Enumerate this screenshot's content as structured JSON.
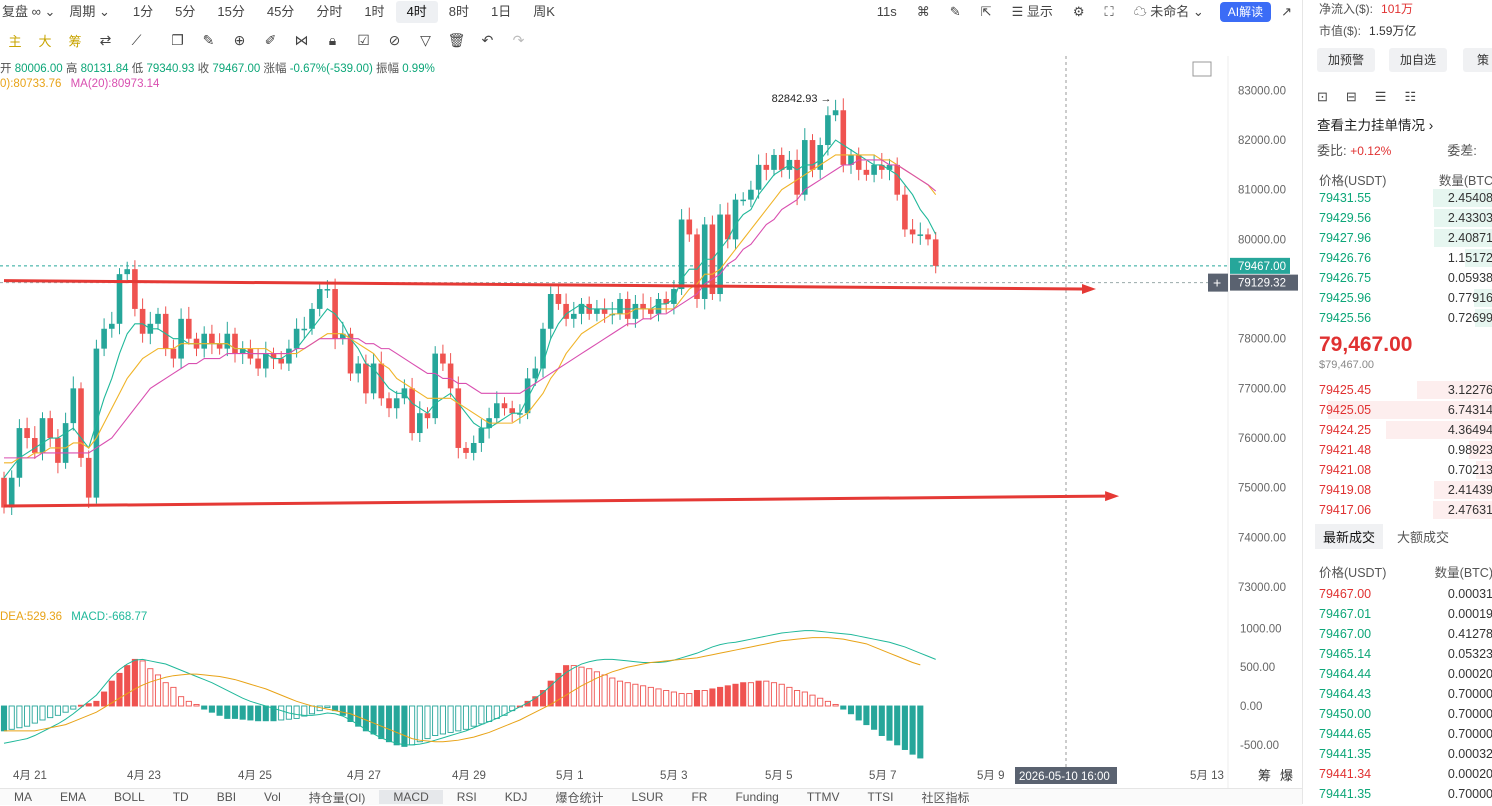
{
  "toolbar": {
    "items": [
      "复盘",
      "周期",
      "1分",
      "5分",
      "15分",
      "45分",
      "分时",
      "1时",
      "4时",
      "8时",
      "1日",
      "周K"
    ],
    "active": "4时",
    "right": [
      "11s",
      "显示",
      "未命名",
      "AI解读"
    ]
  },
  "drawbar": {
    "labels": [
      "主",
      "大",
      "筹"
    ]
  },
  "info": {
    "open_label": "开",
    "open": "80006.00",
    "high_label": "高",
    "high": "80131.84",
    "low_label": "低",
    "low": "79340.93",
    "close_label": "收",
    "close": "79467.00",
    "chg_label": "涨幅",
    "chg": "-0.67%(-539.00)",
    "amp_label": "振幅",
    "amp": "0.99%"
  },
  "ma": {
    "ma10": "0):80733.76",
    "ma20": "MA(20):80973.14"
  },
  "macd_label": {
    "dea": "DEA:529.36",
    "macd": "MACD:-668.77"
  },
  "bottom_tabs": [
    "MA",
    "EMA",
    "BOLL",
    "TD",
    "BBI",
    "Vol",
    "持仓量(OI)",
    "MACD",
    "RSI",
    "KDJ",
    "爆仓统计",
    "LSUR",
    "FR",
    "Funding",
    "TTMV",
    "TTSI",
    "社区指标"
  ],
  "bottom_active": "MACD",
  "colors": {
    "up": "#26a69a",
    "down": "#ef5350",
    "ma_a": "#1fb89a",
    "ma_b": "#f0b429",
    "ma_c": "#d94fb0",
    "arrow": "#e53935"
  },
  "sidebar": {
    "inflow_label": "净流入($):",
    "inflow": "101万",
    "mcap_label": "市值($):",
    "mcap": "1.59万亿",
    "buttons": [
      "加预警",
      "加自选",
      "策"
    ],
    "orderbook_link": "查看主力挂单情况",
    "ratio_label": "委比:",
    "ratio": "+0.12%",
    "diff_label": "委差:",
    "book_head": [
      "价格(USDT)",
      "数量(BTC"
    ],
    "asks": [
      {
        "p": "79431.55",
        "q": "2.45408"
      },
      {
        "p": "79429.56",
        "q": "2.43303"
      },
      {
        "p": "79427.96",
        "q": "2.40871"
      },
      {
        "p": "79426.76",
        "q": "1.15172"
      },
      {
        "p": "79426.75",
        "q": "0.05938"
      },
      {
        "p": "79425.96",
        "q": "0.77916"
      },
      {
        "p": "79425.56",
        "q": "0.72699"
      }
    ],
    "last": "79,467.00",
    "last_usd": "$79,467.00",
    "bids": [
      {
        "p": "79425.45",
        "q": "3.12276"
      },
      {
        "p": "79425.05",
        "q": "6.74314"
      },
      {
        "p": "79424.25",
        "q": "4.36494"
      },
      {
        "p": "79421.48",
        "q": "0.98923"
      },
      {
        "p": "79421.08",
        "q": "0.70213"
      },
      {
        "p": "79419.08",
        "q": "2.41439"
      },
      {
        "p": "79417.06",
        "q": "2.47631"
      }
    ],
    "trade_tabs": [
      "最新成交",
      "大额成交"
    ],
    "trade_head": [
      "价格(USDT)",
      "数量(BTC)"
    ],
    "trades": [
      {
        "p": "79467.00",
        "q": "0.00031",
        "c": "down"
      },
      {
        "p": "79467.01",
        "q": "0.00019",
        "c": "up"
      },
      {
        "p": "79467.00",
        "q": "0.41278",
        "c": "up"
      },
      {
        "p": "79465.14",
        "q": "0.05323",
        "c": "up"
      },
      {
        "p": "79464.44",
        "q": "0.00020",
        "c": "up"
      },
      {
        "p": "79464.43",
        "q": "0.70000",
        "c": "up"
      },
      {
        "p": "79450.00",
        "q": "0.70000",
        "c": "up"
      },
      {
        "p": "79444.65",
        "q": "0.70000",
        "c": "up"
      },
      {
        "p": "79441.35",
        "q": "0.00032",
        "c": "up"
      },
      {
        "p": "79441.34",
        "q": "0.00020",
        "c": "down"
      },
      {
        "p": "79441.35",
        "q": "0.70000",
        "c": "up"
      }
    ]
  },
  "chart_data": {
    "type": "candlestick",
    "interval": "4H",
    "ylim": [
      73000,
      83000
    ],
    "y_ticks": [
      "83000.00",
      "82000.00",
      "81000.00",
      "80000.00",
      "78000.00",
      "77000.00",
      "76000.00",
      "75000.00",
      "74000.00",
      "73000.00"
    ],
    "price_labels": {
      "last": "79467.00",
      "cursor": "79129.32",
      "high_marker": "82842.93"
    },
    "x_ticks": [
      "4月 21",
      "4月 23",
      "4月 25",
      "4月 27",
      "4月 29",
      "5月 1",
      "5月 3",
      "5月 5",
      "5月 7",
      "5月 9",
      "5月 13"
    ],
    "cursor_date": "2026-05-10 16:00",
    "scale_labels": [
      "筹",
      "爆"
    ],
    "macd_ticks": [
      "1000.00",
      "500.00",
      "0.00",
      "-500.00"
    ],
    "annotations": [
      {
        "type": "arrow",
        "from": {
          "date_index": 0,
          "price": 79170
        },
        "to": {
          "date_index": 140,
          "price": 79000
        }
      },
      {
        "type": "arrow",
        "from": {
          "date_index": 0,
          "price": 74630
        },
        "to": {
          "date_index": 143,
          "price": 74830
        }
      }
    ],
    "closes": [
      74600,
      75200,
      76200,
      76000,
      75700,
      76400,
      76000,
      75500,
      76300,
      77000,
      75600,
      74800,
      77800,
      78200,
      78300,
      79300,
      79400,
      78600,
      78100,
      78300,
      78500,
      77800,
      77600,
      78400,
      78000,
      77800,
      78100,
      77900,
      77800,
      78100,
      77700,
      77800,
      77600,
      77400,
      77700,
      77600,
      77500,
      77800,
      78200,
      78200,
      78600,
      79000,
      79000,
      78000,
      78100,
      77300,
      77500,
      76900,
      77500,
      76800,
      76600,
      76800,
      77000,
      76100,
      76500,
      76400,
      77700,
      77500,
      77000,
      75800,
      75700,
      75900,
      76200,
      76400,
      76700,
      76600,
      76500,
      76500,
      77200,
      77400,
      78200,
      78900,
      78700,
      78400,
      78500,
      78700,
      78500,
      78600,
      78500,
      78500,
      78800,
      78400,
      78700,
      78600,
      78500,
      78800,
      78700,
      79000,
      80400,
      80100,
      78800,
      80300,
      78900,
      80500,
      80000,
      80800,
      80800,
      81000,
      81500,
      81400,
      81700,
      81400,
      81600,
      80900,
      82000,
      81400,
      81900,
      82500,
      82600,
      81500,
      81700,
      81400,
      81300,
      81500,
      81400,
      81500,
      80900,
      80200,
      80100,
      80100,
      80000,
      79467
    ],
    "ma_a": [
      75200,
      75400,
      75600,
      75700,
      75800,
      75900,
      76000,
      76000,
      76100,
      76200,
      76000,
      75800,
      76300,
      76800,
      77200,
      77700,
      78100,
      78300,
      78300,
      78200,
      78200,
      78100,
      78000,
      78000,
      77900,
      77900,
      77900,
      77900,
      77900,
      77900,
      77800,
      77800,
      77700,
      77700,
      77700,
      77600,
      77600,
      77700,
      77800,
      78000,
      78200,
      78400,
      78600,
      78500,
      78300,
      78000,
      77800,
      77500,
      77400,
      77200,
      77000,
      76900,
      76900,
      76700,
      76600,
      76500,
      76700,
      76800,
      76900,
      76700,
      76500,
      76300,
      76200,
      76200,
      76300,
      76400,
      76500,
      76500,
      76800,
      77100,
      77500,
      78000,
      78300,
      78500,
      78600,
      78700,
      78600,
      78600,
      78600,
      78600,
      78600,
      78600,
      78600,
      78600,
      78600,
      78700,
      78700,
      78800,
      79200,
      79400,
      79400,
      79600,
      79600,
      79800,
      80000,
      80300,
      80500,
      80600,
      80900,
      81100,
      81300,
      81400,
      81500,
      81400,
      81500,
      81500,
      81600,
      81800,
      82000,
      81900,
      81800,
      81700,
      81600,
      81500,
      81500,
      81400,
      81300,
      81100,
      80900,
      80600,
      80400,
      80100
    ],
    "ma_b": [
      75500,
      75500,
      75600,
      75600,
      75700,
      75700,
      75800,
      75800,
      75800,
      75900,
      75900,
      75800,
      76000,
      76300,
      76600,
      76900,
      77200,
      77400,
      77600,
      77700,
      77800,
      77800,
      77800,
      77900,
      77900,
      77900,
      77900,
      77900,
      77900,
      77900,
      77800,
      77800,
      77800,
      77800,
      77800,
      77700,
      77700,
      77700,
      77700,
      77800,
      77900,
      78000,
      78100,
      78100,
      78100,
      78000,
      77900,
      77800,
      77700,
      77500,
      77400,
      77200,
      77100,
      77000,
      76900,
      76800,
      76800,
      76800,
      76800,
      76700,
      76600,
      76500,
      76400,
      76300,
      76300,
      76300,
      76300,
      76400,
      76500,
      76700,
      76900,
      77200,
      77400,
      77700,
      77900,
      78100,
      78200,
      78300,
      78400,
      78500,
      78500,
      78500,
      78600,
      78600,
      78600,
      78600,
      78600,
      78600,
      78800,
      79000,
      79100,
      79300,
      79300,
      79400,
      79600,
      79800,
      80000,
      80200,
      80400,
      80600,
      80800,
      81000,
      81100,
      81200,
      81300,
      81400,
      81500,
      81600,
      81700,
      81700,
      81700,
      81700,
      81700,
      81700,
      81600,
      81600,
      81500,
      81400,
      81300,
      81200,
      81100,
      80900
    ],
    "ma_c": [
      75600,
      75600,
      75600,
      75600,
      75600,
      75700,
      75700,
      75700,
      75700,
      75700,
      75700,
      75700,
      75800,
      75900,
      76000,
      76200,
      76400,
      76600,
      76800,
      77000,
      77100,
      77200,
      77300,
      77400,
      77500,
      77500,
      77600,
      77600,
      77600,
      77700,
      77700,
      77700,
      77700,
      77700,
      77700,
      77700,
      77700,
      77700,
      77800,
      77800,
      77900,
      78000,
      78000,
      78000,
      78000,
      78000,
      78000,
      77900,
      77900,
      77800,
      77800,
      77700,
      77600,
      77500,
      77400,
      77300,
      77300,
      77200,
      77200,
      77100,
      77100,
      77000,
      76900,
      76900,
      76900,
      76900,
      76900,
      76900,
      77000,
      77100,
      77200,
      77300,
      77400,
      77500,
      77600,
      77700,
      77800,
      77900,
      78000,
      78100,
      78200,
      78300,
      78300,
      78400,
      78400,
      78500,
      78500,
      78600,
      78700,
      78800,
      78900,
      79100,
      79200,
      79300,
      79500,
      79600,
      79800,
      79900,
      80100,
      80300,
      80400,
      80600,
      80700,
      80800,
      81000,
      81100,
      81200,
      81300,
      81400,
      81500,
      81500,
      81600,
      81600,
      81600,
      81600,
      81500,
      81500,
      81400,
      81300,
      81200,
      81100,
      80973
    ],
    "macd_hist": [
      -320,
      -300,
      -280,
      -260,
      -220,
      -180,
      -150,
      -120,
      -80,
      -40,
      10,
      30,
      60,
      180,
      320,
      420,
      520,
      600,
      580,
      480,
      400,
      300,
      240,
      120,
      60,
      20,
      -40,
      -80,
      -120,
      -160,
      -160,
      -170,
      -180,
      -190,
      -190,
      -190,
      -180,
      -170,
      -160,
      -130,
      -100,
      -60,
      -20,
      -60,
      -120,
      -200,
      -260,
      -320,
      -360,
      -420,
      -460,
      -500,
      -520,
      -500,
      -460,
      -420,
      -380,
      -360,
      -340,
      -320,
      -300,
      -260,
      -230,
      -200,
      -160,
      -120,
      -60,
      0,
      60,
      120,
      200,
      320,
      420,
      520,
      520,
      500,
      480,
      440,
      400,
      360,
      320,
      300,
      280,
      260,
      240,
      220,
      200,
      180,
      160,
      160,
      200,
      200,
      220,
      240,
      260,
      280,
      300,
      300,
      320,
      320,
      300,
      280,
      240,
      200,
      180,
      140,
      100,
      60,
      20,
      -40,
      -100,
      -180,
      -240,
      -300,
      -380,
      -440,
      -500,
      -560,
      -620,
      -669
    ],
    "macd_dif": [
      -480,
      -460,
      -440,
      -420,
      -380,
      -330,
      -280,
      -230,
      -170,
      -100,
      -20,
      60,
      140,
      260,
      380,
      470,
      540,
      590,
      600,
      580,
      560,
      540,
      500,
      460,
      420,
      380,
      340,
      300,
      250,
      200,
      150,
      100,
      60,
      30,
      0,
      -30,
      -60,
      -90,
      -110,
      -120,
      -120,
      -110,
      -90,
      -100,
      -130,
      -180,
      -240,
      -300,
      -360,
      -410,
      -450,
      -480,
      -500,
      -500,
      -490,
      -470,
      -440,
      -410,
      -380,
      -350,
      -320,
      -280,
      -240,
      -200,
      -160,
      -110,
      -60,
      -10,
      40,
      100,
      170,
      260,
      350,
      430,
      490,
      540,
      570,
      590,
      600,
      600,
      590,
      580,
      570,
      560,
      560,
      560,
      570,
      590,
      620,
      650,
      680,
      720,
      760,
      790,
      810,
      820,
      840,
      860,
      880,
      900,
      920,
      940,
      950,
      960,
      970,
      970,
      960,
      950,
      940,
      930,
      920,
      900,
      880,
      860,
      840,
      820,
      790,
      760,
      720,
      680,
      640,
      600
    ],
    "macd_dea": [
      -320,
      -320,
      -320,
      -320,
      -320,
      -300,
      -280,
      -260,
      -240,
      -200,
      -160,
      -120,
      -80,
      -20,
      40,
      100,
      160,
      220,
      270,
      310,
      340,
      370,
      390,
      400,
      410,
      410,
      400,
      390,
      380,
      360,
      340,
      310,
      280,
      250,
      220,
      180,
      140,
      100,
      60,
      30,
      0,
      -20,
      -40,
      -60,
      -80,
      -100,
      -140,
      -180,
      -220,
      -260,
      -300,
      -340,
      -380,
      -420,
      -440,
      -450,
      -460,
      -460,
      -450,
      -440,
      -420,
      -400,
      -370,
      -340,
      -300,
      -260,
      -220,
      -180,
      -130,
      -80,
      -30,
      20,
      80,
      140,
      200,
      260,
      310,
      360,
      400,
      440,
      470,
      500,
      520,
      540,
      560,
      570,
      580,
      590,
      600,
      610,
      620,
      640,
      660,
      680,
      700,
      720,
      740,
      760,
      780,
      800,
      820,
      840,
      850,
      860,
      870,
      880,
      880,
      880,
      870,
      860,
      840,
      820,
      800,
      760,
      720,
      680,
      640,
      600,
      560,
      529
    ]
  }
}
